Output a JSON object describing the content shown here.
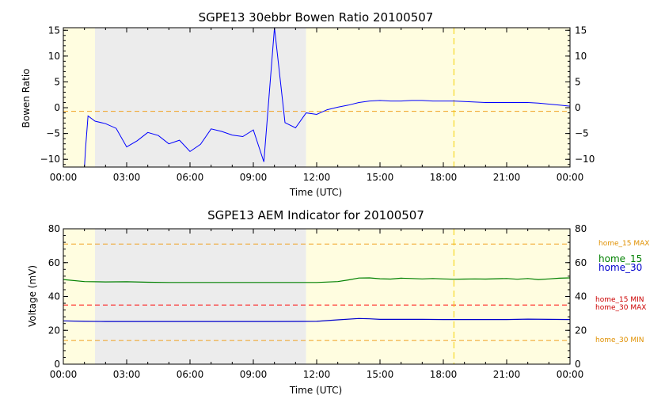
{
  "charts": [
    {
      "type": "line",
      "title": "SGPE13 30ebbr Bowen Ratio 20100507",
      "xlabel": "Time (UTC)",
      "ylabel": "Bowen Ratio",
      "x_ticks": [
        "00:00",
        "03:00",
        "06:00",
        "09:00",
        "12:00",
        "15:00",
        "18:00",
        "21:00",
        "00:00"
      ],
      "y_ticks": [
        "15",
        "10",
        "5",
        "0",
        "−5",
        "−10"
      ],
      "y_tick_values": [
        15,
        10,
        5,
        0,
        -5,
        -10
      ],
      "xlim_hours": [
        0,
        24
      ],
      "ylim": [
        -11.5,
        15.5
      ],
      "night_shading": [
        [
          0,
          1.5,
          "#fffde0"
        ],
        [
          1.5,
          11.5,
          "#ececec"
        ],
        [
          11.5,
          24,
          "#fffde0"
        ]
      ],
      "vline_hour": 18.5,
      "hlines": [
        {
          "value": -0.7,
          "color": "#f0a020"
        }
      ],
      "series": [
        {
          "color": "#0000ff",
          "x": [
            1.0,
            1.05,
            1.17,
            1.5,
            2.0,
            2.5,
            3.0,
            3.5,
            4.0,
            4.5,
            5.0,
            5.5,
            6.0,
            6.5,
            7.0,
            7.5,
            8.0,
            8.5,
            9.0,
            9.5,
            10.0,
            10.5,
            11.0,
            11.5,
            12.0,
            12.5,
            13.0,
            13.5,
            14.0,
            14.5,
            15.0,
            15.5,
            16.0,
            16.5,
            17.0,
            17.5,
            18.0,
            18.5,
            19.0,
            19.5,
            20.0,
            20.5,
            21.0,
            21.5,
            22.0,
            22.5,
            23.0,
            23.5,
            24.0
          ],
          "values": [
            -11.5,
            -8.0,
            -1.6,
            -2.6,
            -3.1,
            -4.0,
            -7.6,
            -6.4,
            -4.8,
            -5.4,
            -7.0,
            -6.3,
            -8.5,
            -7.1,
            -4.1,
            -4.6,
            -5.3,
            -5.6,
            -4.3,
            -10.5,
            15.7,
            -2.9,
            -3.9,
            -1.0,
            -1.3,
            -0.4,
            0.1,
            0.5,
            1.0,
            1.3,
            1.4,
            1.3,
            1.3,
            1.4,
            1.4,
            1.3,
            1.3,
            1.3,
            1.2,
            1.1,
            1.0,
            1.0,
            1.0,
            1.0,
            1.0,
            0.9,
            0.7,
            0.5,
            0.3
          ]
        }
      ]
    },
    {
      "type": "line",
      "title": "SGPE13 AEM Indicator for 20100507",
      "xlabel": "Time (UTC)",
      "ylabel": "Voltage (mV)",
      "x_ticks": [
        "00:00",
        "03:00",
        "06:00",
        "09:00",
        "12:00",
        "15:00",
        "18:00",
        "21:00",
        "00:00"
      ],
      "y_ticks": [
        "80",
        "60",
        "40",
        "20",
        "0"
      ],
      "y_tick_values": [
        80,
        60,
        40,
        20,
        0
      ],
      "xlim_hours": [
        0,
        24
      ],
      "ylim": [
        0,
        80
      ],
      "night_shading": [
        [
          0,
          1.5,
          "#fffde0"
        ],
        [
          1.5,
          11.5,
          "#ececec"
        ],
        [
          11.5,
          24,
          "#fffde0"
        ]
      ],
      "vline_hour": 18.5,
      "hlines": [
        {
          "value": 71,
          "color": "#f0a020"
        },
        {
          "value": 35,
          "color": "#ff0000"
        },
        {
          "value": 14,
          "color": "#f0a020"
        }
      ],
      "series": [
        {
          "name": "home_15",
          "color": "#008000",
          "x": [
            0.0,
            1.0,
            2.0,
            3.0,
            4.0,
            5.0,
            6.0,
            7.0,
            8.0,
            9.0,
            10.0,
            11.0,
            12.0,
            13.0,
            13.5,
            14.0,
            14.5,
            15.0,
            15.5,
            16.0,
            16.5,
            17.0,
            17.5,
            18.0,
            18.5,
            19.0,
            19.5,
            20.0,
            20.5,
            21.0,
            21.5,
            22.0,
            22.5,
            23.0,
            23.5,
            24.0
          ],
          "values": [
            50.0,
            48.8,
            48.6,
            48.7,
            48.4,
            48.3,
            48.3,
            48.3,
            48.3,
            48.3,
            48.3,
            48.3,
            48.3,
            48.8,
            49.8,
            50.9,
            51.0,
            50.5,
            50.3,
            50.8,
            50.6,
            50.4,
            50.6,
            50.4,
            50.2,
            50.3,
            50.4,
            50.3,
            50.5,
            50.6,
            50.2,
            50.6,
            50.0,
            50.4,
            50.8,
            51.0
          ]
        },
        {
          "name": "home_30",
          "color": "#0000cc",
          "x": [
            0.0,
            1.0,
            2.0,
            4.0,
            6.0,
            8.0,
            10.0,
            12.0,
            13.0,
            14.0,
            14.5,
            15.0,
            16.0,
            17.0,
            18.0,
            19.0,
            20.0,
            21.0,
            22.0,
            23.0,
            24.0
          ],
          "values": [
            25.6,
            25.3,
            25.2,
            25.2,
            25.2,
            25.2,
            25.2,
            25.3,
            26.2,
            27.0,
            26.8,
            26.5,
            26.5,
            26.5,
            26.4,
            26.4,
            26.4,
            26.4,
            26.6,
            26.5,
            26.4
          ]
        }
      ],
      "legend": [
        {
          "text": "home_15",
          "color": "#008000"
        },
        {
          "text": "home_30",
          "color": "#0000cc"
        }
      ],
      "threshold_labels": [
        {
          "text": "home_15 MAX",
          "color": "#e09000"
        },
        {
          "text": "home_15 MIN",
          "color": "#cc0000"
        },
        {
          "text": "home_30 MAX",
          "color": "#cc0000"
        },
        {
          "text": "home_30 MIN",
          "color": "#e09000"
        }
      ]
    }
  ]
}
